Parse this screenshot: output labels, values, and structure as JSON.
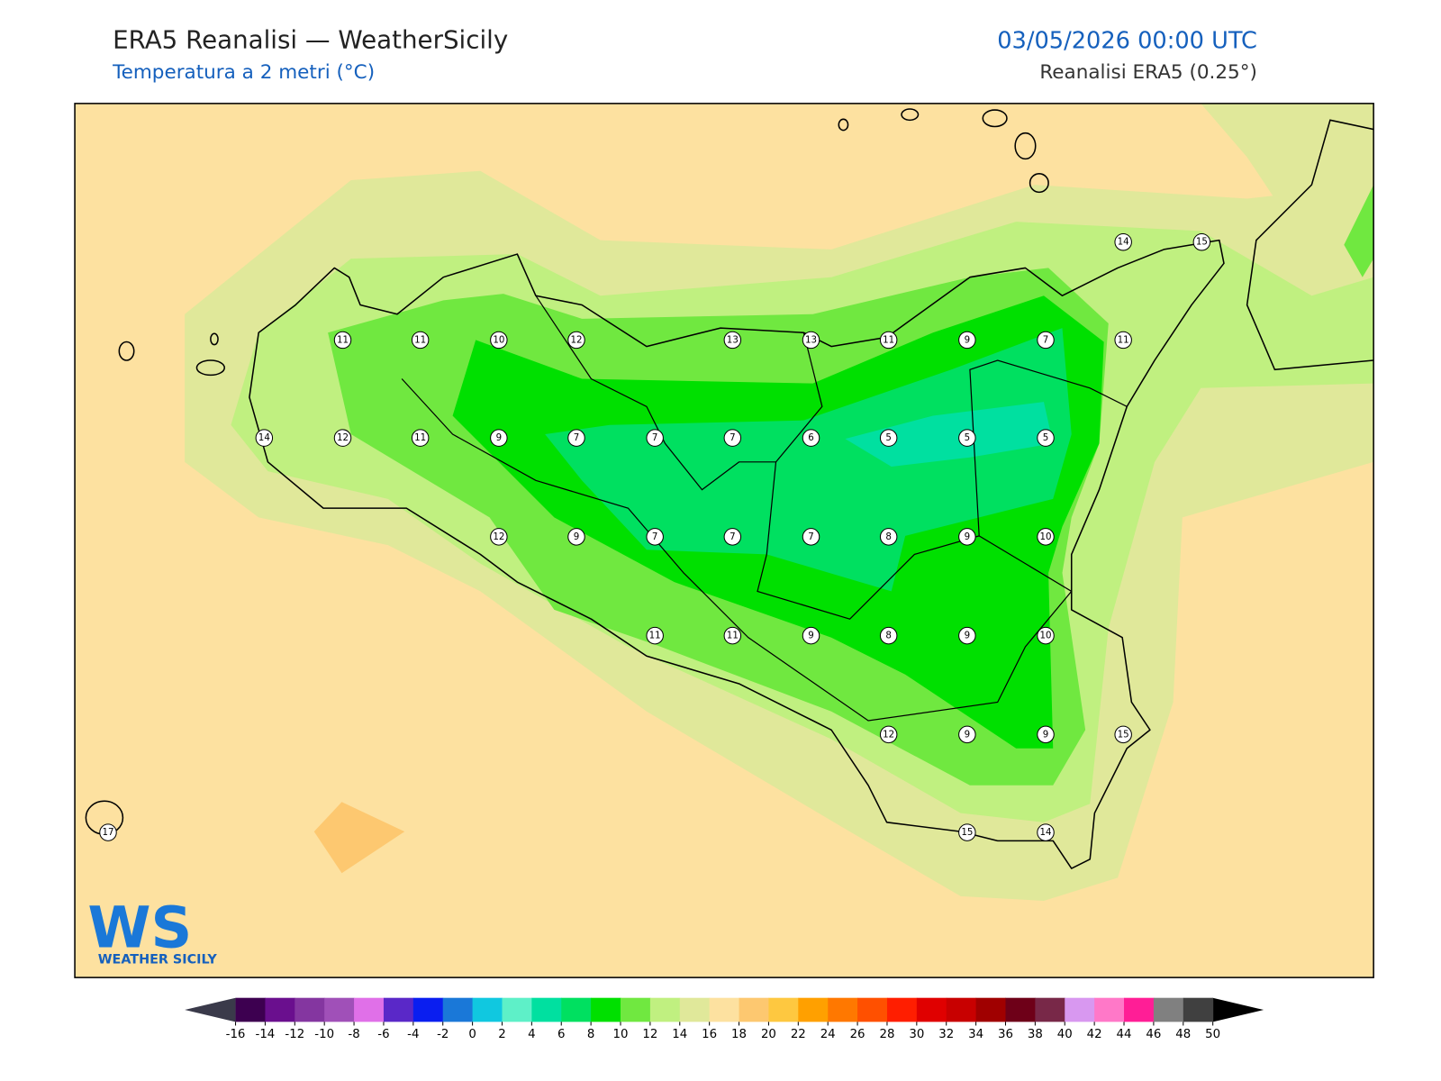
{
  "header": {
    "title": "ERA5 Reanalisi — WeatherSicily",
    "subtitle": "Temperatura a 2 metri (°C)",
    "datetime": "03/05/2026 00:00 UTC",
    "source": "Reanalisi ERA5 (0.25°)"
  },
  "station_values": [
    14,
    15,
    11,
    11,
    10,
    12,
    13,
    13,
    11,
    9,
    7,
    11,
    14,
    12,
    11,
    9,
    7,
    7,
    7,
    6,
    5,
    5,
    5,
    12,
    9,
    7,
    7,
    7,
    8,
    9,
    10,
    11,
    11,
    9,
    8,
    9,
    10,
    12,
    9,
    9,
    15,
    17,
    15,
    14
  ],
  "colorbar": {
    "ticks": [
      -16,
      -14,
      -12,
      -10,
      -8,
      -6,
      -4,
      -2,
      0,
      2,
      4,
      6,
      8,
      10,
      12,
      14,
      16,
      18,
      20,
      22,
      24,
      26,
      28,
      30,
      32,
      34,
      36,
      38,
      40,
      42,
      44,
      46,
      48,
      50
    ],
    "colors": [
      "#3d0050",
      "#6a0f8e",
      "#8436a0",
      "#a050b8",
      "#e070e8",
      "#5a28c8",
      "#0a1ef0",
      "#1a78d8",
      "#10c8e0",
      "#5ef0c8",
      "#00e0a0",
      "#00e060",
      "#00e000",
      "#70e840",
      "#c0f080",
      "#e0e89a",
      "#fde1a0",
      "#fdc870",
      "#fec840",
      "#ffa000",
      "#ff7800",
      "#ff5000",
      "#ff1e00",
      "#e00000",
      "#c80000",
      "#a00000",
      "#6e0018",
      "#782848",
      "#d898f0",
      "#ff78c8",
      "#ff1e96",
      "#808080",
      "#404040"
    ],
    "under_color": "#3a3a4a",
    "over_color": "#000000"
  },
  "logo": {
    "mark": "WS",
    "name": "WEATHER SICILY"
  }
}
